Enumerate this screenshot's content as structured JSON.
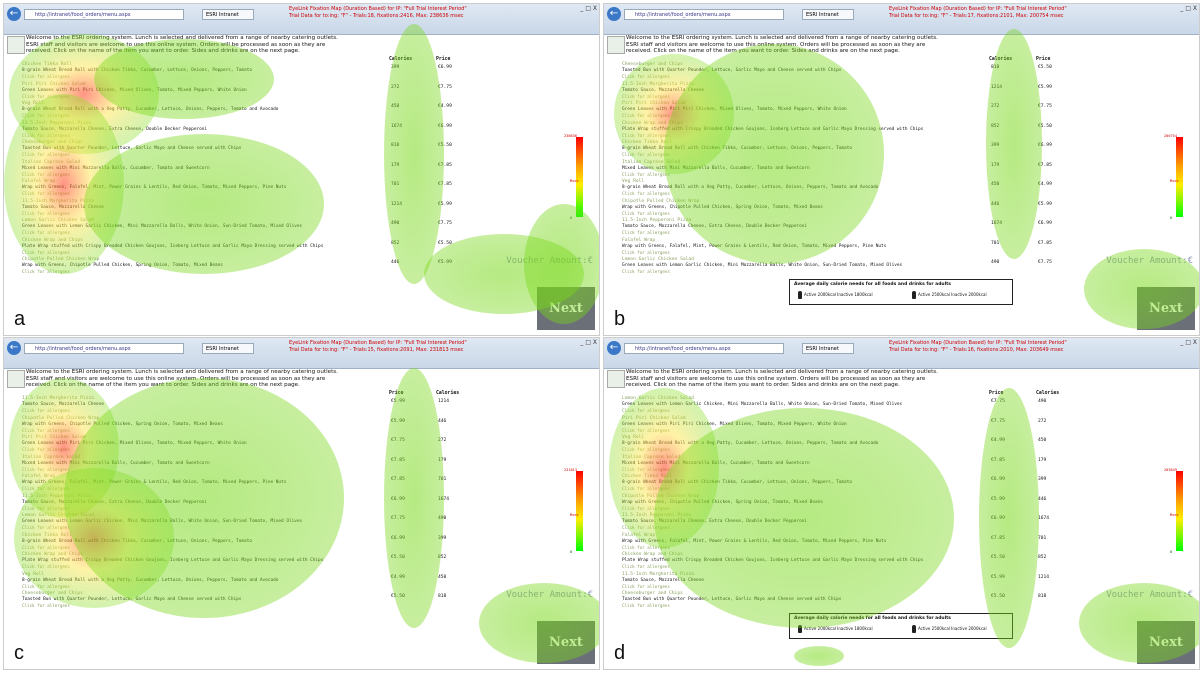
{
  "browser": {
    "back_glyph": "←",
    "address": "http://intranet/food_orders/menu.aspx",
    "tab_label": "ESRI Intranet",
    "window_buttons": "_ □ X"
  },
  "menu": {
    "welcome_lines": [
      "Welcome to the ESRI ordering system. Lunch is selected and delivered from a range of nearby catering outlets.",
      "ESRI staff and visitors are welcome to use this online system. Orders will be processed as soon as they are",
      "received. Click on the name of the item you want to order. Sides and drinks are on the next page."
    ],
    "calories_header": "Calories",
    "price_header": "Price",
    "allergens_text": "Click for allergens",
    "voucher_label": "Voucher Amount:€",
    "next_label": "Next",
    "calorie_box": {
      "title": "Average daily calorie needs for all foods and drinks for adults",
      "line_a": "Active 2000kcal Inactive 1800kcal",
      "line_b": "Active 2500kcal Inactive 2000kcal"
    },
    "legend": {
      "max_color": "#ff0000",
      "min_color": "#00ff00"
    }
  },
  "panels": [
    {
      "label": "a",
      "recording_title": "EyeLink Fixation Map (Duration Based) for IP: \"Full Trial Interest Period\"",
      "recording_subtitle": "Trial Data for to:ing: \"F\" - Trials:18, fixations:2416, Max: 238636 msec",
      "legend_max": "238636",
      "legend_mid": "Msec",
      "legend_min": "0",
      "columns": [
        "calories",
        "price"
      ],
      "show_calorie_box": false,
      "items": [
        {
          "name": "Chicken Tikka Roll",
          "desc": "8-grain Wheat Bread Roll with Chicken Tikka, Cucumber, Lettuce, Onions, Peppers, Tomato",
          "calories": "399",
          "price": "€6.99"
        },
        {
          "name": "Piri Piri Chicken Salad",
          "desc": "Green Leaves with Piri Piri Chicken, Mixed Olives, Tomato, Mixed Peppers, White Onion",
          "calories": "272",
          "price": "€7.75"
        },
        {
          "name": "Veg Roll",
          "desc": "8-grain Wheat Bread Roll with a Veg Patty, Cucumber, Lettuce, Onions, Peppers, Tomato and Avocado",
          "calories": "450",
          "price": "€4.99"
        },
        {
          "name": "11.5-Inch Pepperoni Pizza",
          "desc": "Tomato Sauce, Mozzarella Cheese, Extra Cheese, Double Decker Pepperoni",
          "calories": "1674",
          "price": "€6.99"
        },
        {
          "name": "Cheeseburger and Chips",
          "desc": "Toasted Bun with Quarter Pounder, Lettuce, Garlic Mayo and Cheese served with Chips",
          "calories": "818",
          "price": "€5.50"
        },
        {
          "name": "Italian Caprese Salad",
          "desc": "Mixed Leaves with Mini Mozzarella Balls, Cucumber, Tomato and Sweetcorn",
          "calories": "179",
          "price": "€7.85"
        },
        {
          "name": "Falafel Wrap",
          "desc": "Wrap with Greens, Falafel, Mint, Power Grains & Lentils, Red Onion, Tomato, Mixed Peppers, Pine Nuts",
          "calories": "701",
          "price": "€7.85"
        },
        {
          "name": "11.5-Inch Margherita Pizza",
          "desc": "Tomato Sauce, Mozzarella Cheese",
          "calories": "1214",
          "price": "€5.99"
        },
        {
          "name": "Lemon Garlic Chicken Salad",
          "desc": "Green Leaves with Lemon Garlic Chicken, Mini Mozzarella Balls, White Onion, Sun-Dried Tomato, Mixed Olives",
          "calories": "490",
          "price": "€7.75"
        },
        {
          "name": "Chicken Wrap and Chips",
          "desc": "Plate Wrap stuffed with Crispy Breaded Chicken Goujons, Iceberg Lettuce and Garlic Mayo Dressing served with Chips",
          "calories": "852",
          "price": "€5.50"
        },
        {
          "name": "Chipotle Pulled Chicken Wrap",
          "desc": "Wrap with Greens, Chipotle Pulled Chicken, Spring Onion, Tomato, Mixed Beans",
          "calories": "446",
          "price": "€5.99"
        }
      ]
    },
    {
      "label": "b",
      "recording_title": "EyeLink Fixation Map (Duration Based) for IP: \"Full Trial Interest Period\"",
      "recording_subtitle": "Trial Data for to:ing: \"F\" - Trials:17, fixations:2101, Max: 200754 msec",
      "legend_max": "200754",
      "legend_mid": "Msec",
      "legend_min": "0",
      "columns": [
        "calories",
        "price"
      ],
      "show_calorie_box": true,
      "items": [
        {
          "name": "Cheeseburger and Chips",
          "desc": "Toasted Bun with Quarter Pounder, Lettuce, Garlic Mayo and Cheese served with Chips",
          "calories": "818",
          "price": "€5.50"
        },
        {
          "name": "11.5-Inch Margherita Pizza",
          "desc": "Tomato Sauce, Mozzarella Cheese",
          "calories": "1214",
          "price": "€5.99"
        },
        {
          "name": "Piri Piri Chicken Salad",
          "desc": "Green Leaves with Piri Piri Chicken, Mixed Olives, Tomato, Mixed Peppers, White Onion",
          "calories": "272",
          "price": "€7.75"
        },
        {
          "name": "Chicken Wrap and Chips",
          "desc": "Plate Wrap stuffed with Crispy Breaded Chicken Goujons, Iceberg Lettuce and Garlic Mayo Dressing served with Chips",
          "calories": "852",
          "price": "€5.50"
        },
        {
          "name": "Chicken Tikka Roll",
          "desc": "8-grain Wheat Bread Roll with Chicken Tikka, Cucumber, Lettuce, Onions, Peppers, Tomato",
          "calories": "399",
          "price": "€6.99"
        },
        {
          "name": "Italian Caprese Salad",
          "desc": "Mixed Leaves with Mini Mozzarella Balls, Cucumber, Tomato and Sweetcorn",
          "calories": "179",
          "price": "€7.85"
        },
        {
          "name": "Veg Roll",
          "desc": "8-grain Wheat Bread Roll with a Veg Patty, Cucumber, Lettuce, Onions, Peppers, Tomato and Avocado",
          "calories": "450",
          "price": "€4.99"
        },
        {
          "name": "Chipotle Pulled Chicken Wrap",
          "desc": "Wrap with Greens, Chipotle Pulled Chicken, Spring Onion, Tomato, Mixed Beans",
          "calories": "446",
          "price": "€5.99"
        },
        {
          "name": "11.5-Inch Pepperoni Pizza",
          "desc": "Tomato Sauce, Mozzarella Cheese, Extra Cheese, Double Decker Pepperoni",
          "calories": "1674",
          "price": "€6.99"
        },
        {
          "name": "Falafel Wrap",
          "desc": "Wrap with Greens, Falafel, Mint, Power Grains & Lentils, Red Onion, Tomato, Mixed Peppers, Pine Nuts",
          "calories": "701",
          "price": "€7.85"
        },
        {
          "name": "Lemon Garlic Chicken Salad",
          "desc": "Green Leaves with Lemon Garlic Chicken, Mini Mozzarella Balls, White Onion, Sun-Dried Tomato, Mixed Olives",
          "calories": "490",
          "price": "€7.75"
        }
      ]
    },
    {
      "label": "c",
      "recording_title": "EyeLink Fixation Map (Duration Based) for IP: \"Full Trial Interest Period\"",
      "recording_subtitle": "Trial Data for to:ing: \"F\" - Trials:15, fixations:2091, Max: 231813 msec",
      "legend_max": "231813",
      "legend_mid": "Msec",
      "legend_min": "0",
      "columns": [
        "price",
        "calories"
      ],
      "show_calorie_box": false,
      "items": [
        {
          "name": "11.5-Inch Margherita Pizza",
          "desc": "Tomato Sauce, Mozzarella Cheese",
          "calories": "1214",
          "price": "€5.99"
        },
        {
          "name": "Chipotle Pulled Chicken Wrap",
          "desc": "Wrap with Greens, Chipotle Pulled Chicken, Spring Onion, Tomato, Mixed Beans",
          "calories": "446",
          "price": "€5.99"
        },
        {
          "name": "Piri Piri Chicken Salad",
          "desc": "Green Leaves with Piri Piri Chicken, Mixed Olives, Tomato, Mixed Peppers, White Onion",
          "calories": "272",
          "price": "€7.75"
        },
        {
          "name": "Italian Caprese Salad",
          "desc": "Mixed Leaves with Mini Mozzarella Balls, Cucumber, Tomato and Sweetcorn",
          "calories": "179",
          "price": "€7.85"
        },
        {
          "name": "Falafel Wrap",
          "desc": "Wrap with Greens, Falafel, Mint, Power Grains & Lentils, Red Onion, Tomato, Mixed Peppers, Pine Nuts",
          "calories": "701",
          "price": "€7.85"
        },
        {
          "name": "11.5-Inch Pepperoni Pizza",
          "desc": "Tomato Sauce, Mozzarella Cheese, Extra Cheese, Double Decker Pepperoni",
          "calories": "1674",
          "price": "€6.99"
        },
        {
          "name": "Lemon Garlic Chicken Salad",
          "desc": "Green Leaves with Lemon Garlic Chicken, Mini Mozzarella Balls, White Onion, Sun-Dried Tomato, Mixed Olives",
          "calories": "490",
          "price": "€7.75"
        },
        {
          "name": "Chicken Tikka Roll",
          "desc": "8-grain Wheat Bread Roll with Chicken Tikka, Cucumber, Lettuce, Onions, Peppers, Tomato",
          "calories": "399",
          "price": "€6.99"
        },
        {
          "name": "Chicken Wrap and Chips",
          "desc": "Plate Wrap stuffed with Crispy Breaded Chicken Goujons, Iceberg Lettuce and Garlic Mayo Dressing served with Chips",
          "calories": "852",
          "price": "€5.50"
        },
        {
          "name": "Veg Roll",
          "desc": "8-grain Wheat Bread Roll with a Veg Patty, Cucumber, Lettuce, Onions, Peppers, Tomato and Avocado",
          "calories": "450",
          "price": "€4.99"
        },
        {
          "name": "Cheeseburger and Chips",
          "desc": "Toasted Bun with Quarter Pounder, Lettuce, Garlic Mayo and Cheese served with Chips",
          "calories": "818",
          "price": "€5.50"
        }
      ]
    },
    {
      "label": "d",
      "recording_title": "EyeLink Fixation Map (Duration Based) for IP: \"Full Trial Interest Period\"",
      "recording_subtitle": "Trial Data for to:ing: \"F\" - Trials:16, fixations:2010, Max: 203649 msec",
      "legend_max": "203649",
      "legend_mid": "Msec",
      "legend_min": "0",
      "columns": [
        "price",
        "calories"
      ],
      "show_calorie_box": true,
      "items": [
        {
          "name": "Lemon Garlic Chicken Salad",
          "desc": "Green Leaves with Lemon Garlic Chicken, Mini Mozzarella Balls, White Onion, Sun-Dried Tomato, Mixed Olives",
          "calories": "490",
          "price": "€7.75"
        },
        {
          "name": "Piri Piri Chicken Salad",
          "desc": "Green Leaves with Piri Piri Chicken, Mixed Olives, Tomato, Mixed Peppers, White Onion",
          "calories": "272",
          "price": "€7.75"
        },
        {
          "name": "Veg Roll",
          "desc": "8-grain Wheat Bread Roll with a Veg Patty, Cucumber, Lettuce, Onions, Peppers, Tomato and Avocado",
          "calories": "450",
          "price": "€4.99"
        },
        {
          "name": "Italian Caprese Salad",
          "desc": "Mixed Leaves with Mini Mozzarella Balls, Cucumber, Tomato and Sweetcorn",
          "calories": "179",
          "price": "€7.85"
        },
        {
          "name": "Chicken Tikka Roll",
          "desc": "8-grain Wheat Bread Roll with Chicken Tikka, Cucumber, Lettuce, Onions, Peppers, Tomato",
          "calories": "399",
          "price": "€6.99"
        },
        {
          "name": "Chipotle Pulled Chicken Wrap",
          "desc": "Wrap with Greens, Chipotle Pulled Chicken, Spring Onion, Tomato, Mixed Beans",
          "calories": "446",
          "price": "€5.99"
        },
        {
          "name": "11.5-Inch Pepperoni Pizza",
          "desc": "Tomato Sauce, Mozzarella Cheese, Extra Cheese, Double Decker Pepperoni",
          "calories": "1674",
          "price": "€6.99"
        },
        {
          "name": "Falafel Wrap",
          "desc": "Wrap with Greens, Falafel, Mint, Power Grains & Lentils, Red Onion, Tomato, Mixed Peppers, Pine Nuts",
          "calories": "701",
          "price": "€7.85"
        },
        {
          "name": "Chicken Wrap and Chips",
          "desc": "Plate Wrap stuffed with Crispy Breaded Chicken Goujons, Iceberg Lettuce and Garlic Mayo Dressing served with Chips",
          "calories": "852",
          "price": "€5.50"
        },
        {
          "name": "11.5-Inch Margherita Pizza",
          "desc": "Tomato Sauce, Mozzarella Cheese",
          "calories": "1214",
          "price": "€5.99"
        },
        {
          "name": "Cheeseburger and Chips",
          "desc": "Toasted Bun with Quarter Pounder, Lettuce, Garlic Mayo and Cheese served with Chips",
          "calories": "818",
          "price": "€5.50"
        }
      ]
    }
  ]
}
